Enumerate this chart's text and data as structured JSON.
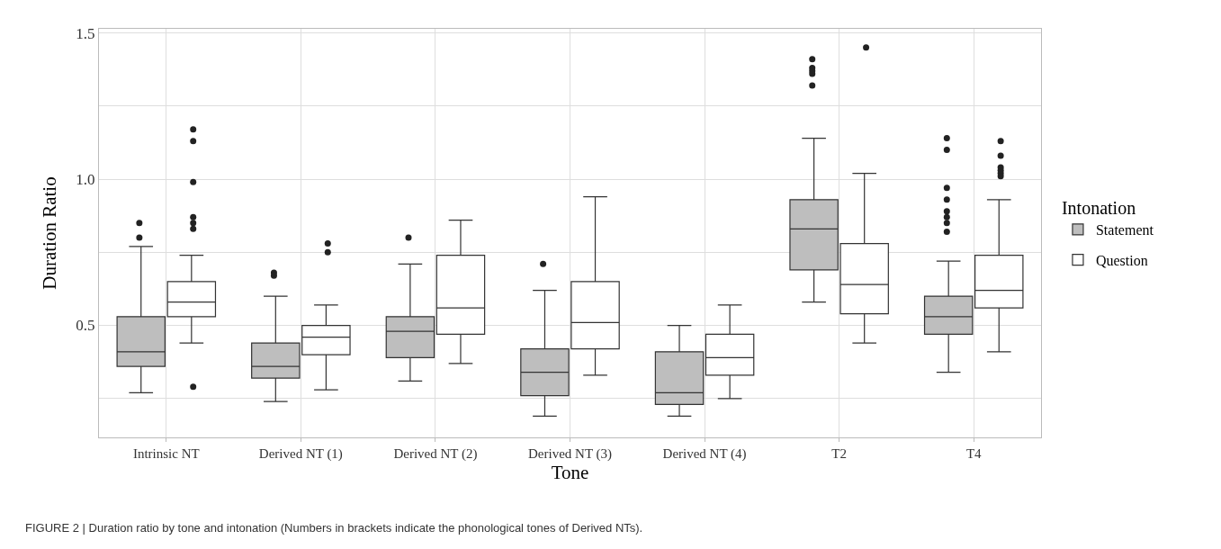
{
  "chart_data": {
    "type": "box",
    "xlabel": "Tone",
    "ylabel": "Duration Ratio",
    "legend_title": "Intonation",
    "categories": [
      "Intrinsic NT",
      "Derived NT (1)",
      "Derived NT (2)",
      "Derived NT (3)",
      "Derived NT (4)",
      "T2",
      "T4"
    ],
    "ylim": [
      0.117,
      1.514
    ],
    "yticks": [
      {
        "value": 0.25,
        "label": null
      },
      {
        "value": 0.5,
        "label": "0.5"
      },
      {
        "value": 0.75,
        "label": null
      },
      {
        "value": 1.0,
        "label": "1.0"
      },
      {
        "value": 1.25,
        "label": null
      },
      {
        "value": 1.5,
        "label": "1.5"
      }
    ],
    "grid": true,
    "legend": "right",
    "series": [
      {
        "name": "Statement",
        "color": "#bebebe",
        "boxes": [
          {
            "low": 0.27,
            "q1": 0.36,
            "median": 0.41,
            "q3": 0.53,
            "high": 0.77,
            "outliers": [
              0.85,
              0.8
            ]
          },
          {
            "low": 0.24,
            "q1": 0.32,
            "median": 0.36,
            "q3": 0.44,
            "high": 0.6,
            "outliers": [
              0.68,
              0.67
            ]
          },
          {
            "low": 0.31,
            "q1": 0.39,
            "median": 0.48,
            "q3": 0.53,
            "high": 0.71,
            "outliers": [
              0.8
            ]
          },
          {
            "low": 0.19,
            "q1": 0.26,
            "median": 0.34,
            "q3": 0.42,
            "high": 0.62,
            "outliers": [
              0.71
            ]
          },
          {
            "low": 0.19,
            "q1": 0.23,
            "median": 0.27,
            "q3": 0.41,
            "high": 0.5
          },
          {
            "low": 0.58,
            "q1": 0.69,
            "median": 0.83,
            "q3": 0.93,
            "high": 1.14,
            "outliers": [
              1.41,
              1.38,
              1.37,
              1.36,
              1.32
            ]
          },
          {
            "low": 0.34,
            "q1": 0.47,
            "median": 0.53,
            "q3": 0.6,
            "high": 0.72,
            "outliers": [
              1.14,
              1.1,
              0.97,
              0.93,
              0.89,
              0.87,
              0.85,
              0.82
            ]
          }
        ]
      },
      {
        "name": "Question",
        "color": "#ffffff",
        "boxes": [
          {
            "low": 0.44,
            "q1": 0.53,
            "median": 0.58,
            "q3": 0.65,
            "high": 0.74,
            "outliers": [
              1.17,
              1.13,
              0.99,
              0.87,
              0.85,
              0.83,
              0.29
            ]
          },
          {
            "low": 0.28,
            "q1": 0.4,
            "median": 0.46,
            "q3": 0.5,
            "high": 0.57,
            "outliers": [
              0.78,
              0.75
            ]
          },
          {
            "low": 0.37,
            "q1": 0.47,
            "median": 0.56,
            "q3": 0.74,
            "high": 0.86
          },
          {
            "low": 0.33,
            "q1": 0.42,
            "median": 0.51,
            "q3": 0.65,
            "high": 0.94
          },
          {
            "low": 0.25,
            "q1": 0.33,
            "median": 0.39,
            "q3": 0.47,
            "high": 0.57
          },
          {
            "low": 0.44,
            "q1": 0.54,
            "median": 0.64,
            "q3": 0.78,
            "high": 1.02,
            "outliers": [
              1.45
            ]
          },
          {
            "low": 0.41,
            "q1": 0.56,
            "median": 0.62,
            "q3": 0.74,
            "high": 0.93,
            "outliers": [
              1.13,
              1.08,
              1.04,
              1.03,
              1.02,
              1.01
            ]
          }
        ]
      }
    ],
    "annotations": [
      "FIGURE 2 | Duration ratio by tone and intonation (Numbers in brackets indicate the phonological tones of Derived NTs)."
    ]
  }
}
